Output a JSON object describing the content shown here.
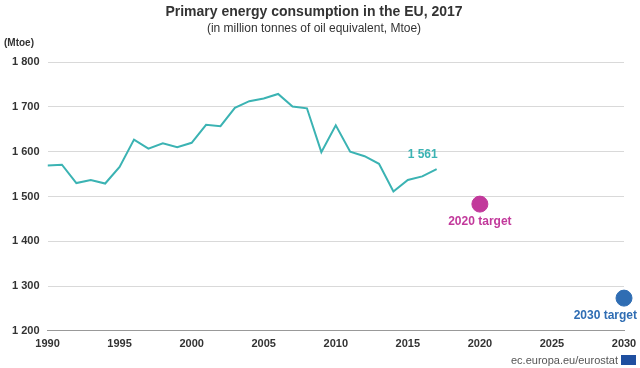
{
  "chart_data": {
    "type": "line",
    "title": "Primary energy consumption in the EU, 2017",
    "subtitle": "(in million tonnes of oil equivalent, Mtoe)",
    "y_label": "(Mtoe)",
    "source": "ec.europa.eu/eurostat",
    "x": [
      1990,
      1991,
      1992,
      1993,
      1994,
      1995,
      1996,
      1997,
      1998,
      1999,
      2000,
      2001,
      2002,
      2003,
      2004,
      2005,
      2006,
      2007,
      2008,
      2009,
      2010,
      2011,
      2012,
      2013,
      2014,
      2015,
      2016,
      2017
    ],
    "values": [
      1569,
      1571,
      1530,
      1537,
      1529,
      1566,
      1627,
      1607,
      1619,
      1610,
      1620,
      1660,
      1657,
      1698,
      1713,
      1719,
      1729,
      1701,
      1697,
      1599,
      1659,
      1600,
      1590,
      1573,
      1511,
      1537,
      1545,
      1561
    ],
    "color": "#3bb3b3",
    "marker": "none",
    "line_style": "solid",
    "annotations": [
      {
        "text": "1 561",
        "x": 2017,
        "y": 1561
      }
    ],
    "targets": [
      {
        "label": "2020 target",
        "x": 2020,
        "value": 1483,
        "color": "#c2399b",
        "marker": "circle"
      },
      {
        "label": "2030 target",
        "x": 2030,
        "value": 1273,
        "color": "#2f6db3",
        "marker": "circle"
      }
    ],
    "xlim": [
      1990,
      2030
    ],
    "xticks": [
      1990,
      1995,
      2000,
      2005,
      2010,
      2015,
      2020,
      2025,
      2030
    ],
    "ylim": [
      1200,
      1800
    ],
    "yticks": [
      {
        "value": 1200,
        "label": "1 200"
      },
      {
        "value": 1300,
        "label": "1 300"
      },
      {
        "value": 1400,
        "label": "1 400"
      },
      {
        "value": 1500,
        "label": "1 500"
      },
      {
        "value": 1600,
        "label": "1 600"
      },
      {
        "value": 1700,
        "label": "1 700"
      },
      {
        "value": 1800,
        "label": "1 800"
      }
    ],
    "grid": true
  }
}
